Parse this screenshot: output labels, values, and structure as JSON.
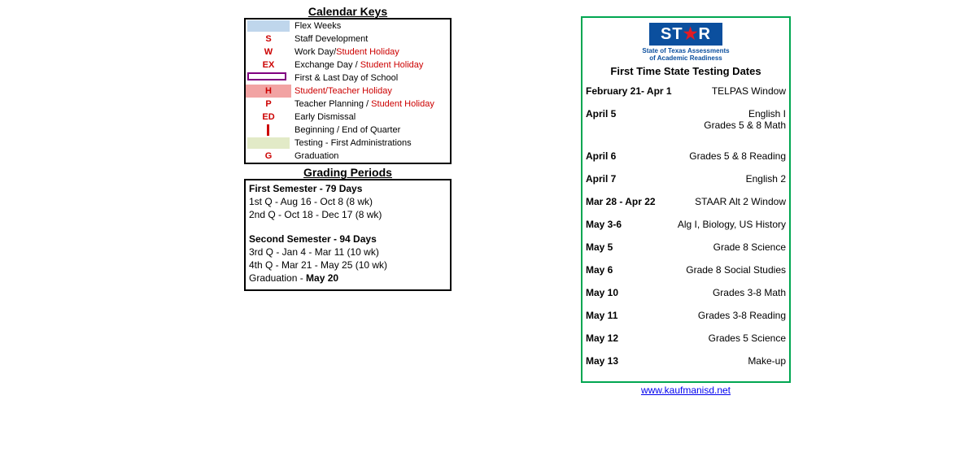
{
  "calendarKeys": {
    "title": "Calendar Keys",
    "rows": [
      {
        "symbol_type": "swatch",
        "swatch_color": "#bfd6ec",
        "label_parts": [
          {
            "text": "Flex Weeks",
            "red": false
          }
        ]
      },
      {
        "symbol_type": "letter",
        "symbol": "S",
        "label_parts": [
          {
            "text": "Staff Development",
            "red": false
          }
        ]
      },
      {
        "symbol_type": "letter",
        "symbol": "W",
        "label_parts": [
          {
            "text": "Work Day/",
            "red": false
          },
          {
            "text": "Student Holiday",
            "red": true
          }
        ]
      },
      {
        "symbol_type": "letter",
        "symbol": "EX",
        "label_parts": [
          {
            "text": "Exchange Day / ",
            "red": false
          },
          {
            "text": "Student Holiday",
            "red": true
          }
        ]
      },
      {
        "symbol_type": "purple-box",
        "label_parts": [
          {
            "text": "First & Last Day of School",
            "red": false
          }
        ]
      },
      {
        "symbol_type": "letter-bg",
        "symbol": "H",
        "bg_color": "#f2a3a3",
        "label_parts": [
          {
            "text": "Student/Teacher Holiday",
            "red": true
          }
        ]
      },
      {
        "symbol_type": "letter",
        "symbol": "P",
        "label_parts": [
          {
            "text": "Teacher Planning / ",
            "red": false
          },
          {
            "text": "Student Holiday",
            "red": true
          }
        ]
      },
      {
        "symbol_type": "letter",
        "symbol": "ED",
        "label_parts": [
          {
            "text": "Early Dismissal",
            "red": false
          }
        ]
      },
      {
        "symbol_type": "red-bar",
        "label_parts": [
          {
            "text": "Beginning / End of Quarter",
            "red": false
          }
        ]
      },
      {
        "symbol_type": "swatch",
        "swatch_color": "#e2eac7",
        "label_parts": [
          {
            "text": "Testing - First Administrations",
            "red": false
          }
        ]
      },
      {
        "symbol_type": "letter",
        "symbol": "G",
        "label_parts": [
          {
            "text": "Graduation",
            "red": false
          }
        ]
      }
    ]
  },
  "gradingPeriods": {
    "title": "Grading Periods",
    "sem1_head": "First Semester - 79 Days",
    "sem1_q1": "1st Q - Aug 16 - Oct 8 (8 wk)",
    "sem1_q2": "2nd Q - Oct 18 - Dec 17  (8 wk)",
    "sem2_head": "Second Semester - 94 Days",
    "sem2_q3": "3rd Q - Jan 4 - Mar 11 (10 wk)",
    "sem2_q4": "4th Q - Mar 21 - May 25 (10 wk)",
    "grad_prefix": "Graduation - ",
    "grad_date": "May 20"
  },
  "testing": {
    "logo_text_1": "ST",
    "logo_text_2": "R",
    "sub1": "State of Texas Assessments",
    "sub2": "of Academic Readiness",
    "title": "First Time State Testing Dates",
    "rows": [
      {
        "date": "February 21- Apr 1",
        "desc": "TELPAS Window"
      },
      {
        "date": "April 5",
        "desc": "English I\nGrades 5 & 8 Math"
      },
      {
        "date": "April 6",
        "desc": "Grades 5 & 8 Reading"
      },
      {
        "date": "April 7",
        "desc": "English 2"
      },
      {
        "date": "Mar 28 - Apr 22",
        "desc": "STAAR Alt 2 Window"
      },
      {
        "date": "May 3-6",
        "desc": "Alg I, Biology, US History"
      },
      {
        "date": "May 5",
        "desc": "Grade 8 Science"
      },
      {
        "date": "May 6",
        "desc": "Grade 8 Social Studies"
      },
      {
        "date": "May 10",
        "desc": "Grades 3-8 Math"
      },
      {
        "date": "May 11",
        "desc": "Grades 3-8 Reading"
      },
      {
        "date": "May 12",
        "desc": "Grades 5 Science"
      },
      {
        "date": "May 13",
        "desc": "Make-up"
      }
    ],
    "link": "www.kaufmanisd.net"
  },
  "colors": {
    "box_border": "#000000",
    "green_border": "#00a651",
    "star_bg": "#0b4f9e",
    "star_red": "#e31b23",
    "link": "#0000ee"
  }
}
